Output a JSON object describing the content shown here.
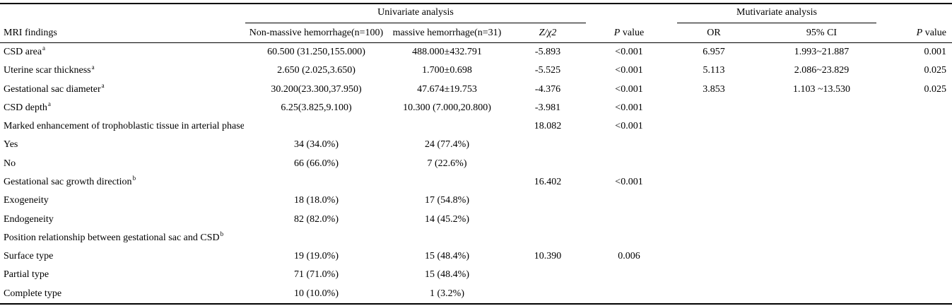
{
  "meta": {
    "background_color": "#ffffff",
    "text_color": "#000000",
    "line_color": "#000000"
  },
  "table": {
    "groups": {
      "univariate": "Univariate analysis",
      "multivariate": "Mutivariate analysis"
    },
    "columns": [
      {
        "label": "MRI findings"
      },
      {
        "label": "Non-massive hemorrhage(n=100)"
      },
      {
        "label": "massive hemorrhage(n=31)"
      },
      {
        "label_italic": "Z/χ2",
        "label": ""
      },
      {
        "label_italic": "P",
        "label": " value"
      },
      {
        "label": "OR"
      },
      {
        "label": "95% CI"
      },
      {
        "label_italic": "P",
        "label": " value"
      }
    ],
    "rows": [
      {
        "label": "CSD area",
        "sup": "a",
        "cells": [
          "60.500 (31.250,155.000)",
          "488.000±432.791",
          "-5.893",
          "<0.001",
          "6.957",
          "1.993~21.887",
          "0.001"
        ]
      },
      {
        "label": "Uterine scar thickness",
        "sup": "a",
        "cells": [
          "2.650 (2.025,3.650)",
          "1.700±0.698",
          "-5.525",
          "<0.001",
          "5.113",
          "2.086~23.829",
          "0.025"
        ]
      },
      {
        "label": "Gestational sac diameter",
        "sup": "a",
        "cells": [
          "30.200(23.300,37.950)",
          "47.674±19.753",
          "-4.376",
          "<0.001",
          "3.853",
          "1.103 ~13.530",
          "0.025"
        ]
      },
      {
        "label": "CSD depth",
        "sup": "a",
        "cells": [
          "6.25(3.825,9.100)",
          "10.300 (7.000,20.800)",
          "-3.981",
          "<0.001",
          "",
          "",
          ""
        ]
      },
      {
        "label": "Marked enhancement of trophoblastic tissue in arterial phase",
        "sup": "b",
        "cells": [
          "",
          "",
          "18.082",
          "<0.001",
          "",
          "",
          ""
        ]
      },
      {
        "label": "Yes",
        "sup": "",
        "cells": [
          "34 (34.0%)",
          "24 (77.4%)",
          "",
          "",
          "",
          "",
          ""
        ]
      },
      {
        "label": "No",
        "sup": "",
        "cells": [
          "66 (66.0%)",
          "7 (22.6%)",
          "",
          "",
          "",
          "",
          ""
        ]
      },
      {
        "label": "Gestational sac growth direction",
        "sup": "b",
        "cells": [
          "",
          "",
          "16.402",
          "<0.001",
          "",
          "",
          ""
        ]
      },
      {
        "label": "Exogeneity",
        "sup": "",
        "cells": [
          "18 (18.0%)",
          "17 (54.8%)",
          "",
          "",
          "",
          "",
          ""
        ]
      },
      {
        "label": "Endogeneity",
        "sup": "",
        "cells": [
          "82 (82.0%)",
          "14 (45.2%)",
          "",
          "",
          "",
          "",
          ""
        ]
      },
      {
        "label": "Position relationship between gestational sac and CSD",
        "sup": "b",
        "cells": [
          "",
          "",
          "",
          "",
          "",
          "",
          ""
        ]
      },
      {
        "label": "Surface type",
        "sup": "",
        "cells": [
          "19 (19.0%)",
          "15 (48.4%)",
          "10.390",
          "0.006",
          "",
          "",
          ""
        ]
      },
      {
        "label": "Partial type",
        "sup": "",
        "cells": [
          "71 (71.0%)",
          "15 (48.4%)",
          "",
          "",
          "",
          "",
          ""
        ]
      },
      {
        "label": "Complete type",
        "sup": "",
        "cells": [
          "10 (10.0%)",
          "1 (3.2%)",
          "",
          "",
          "",
          "",
          ""
        ]
      }
    ]
  }
}
